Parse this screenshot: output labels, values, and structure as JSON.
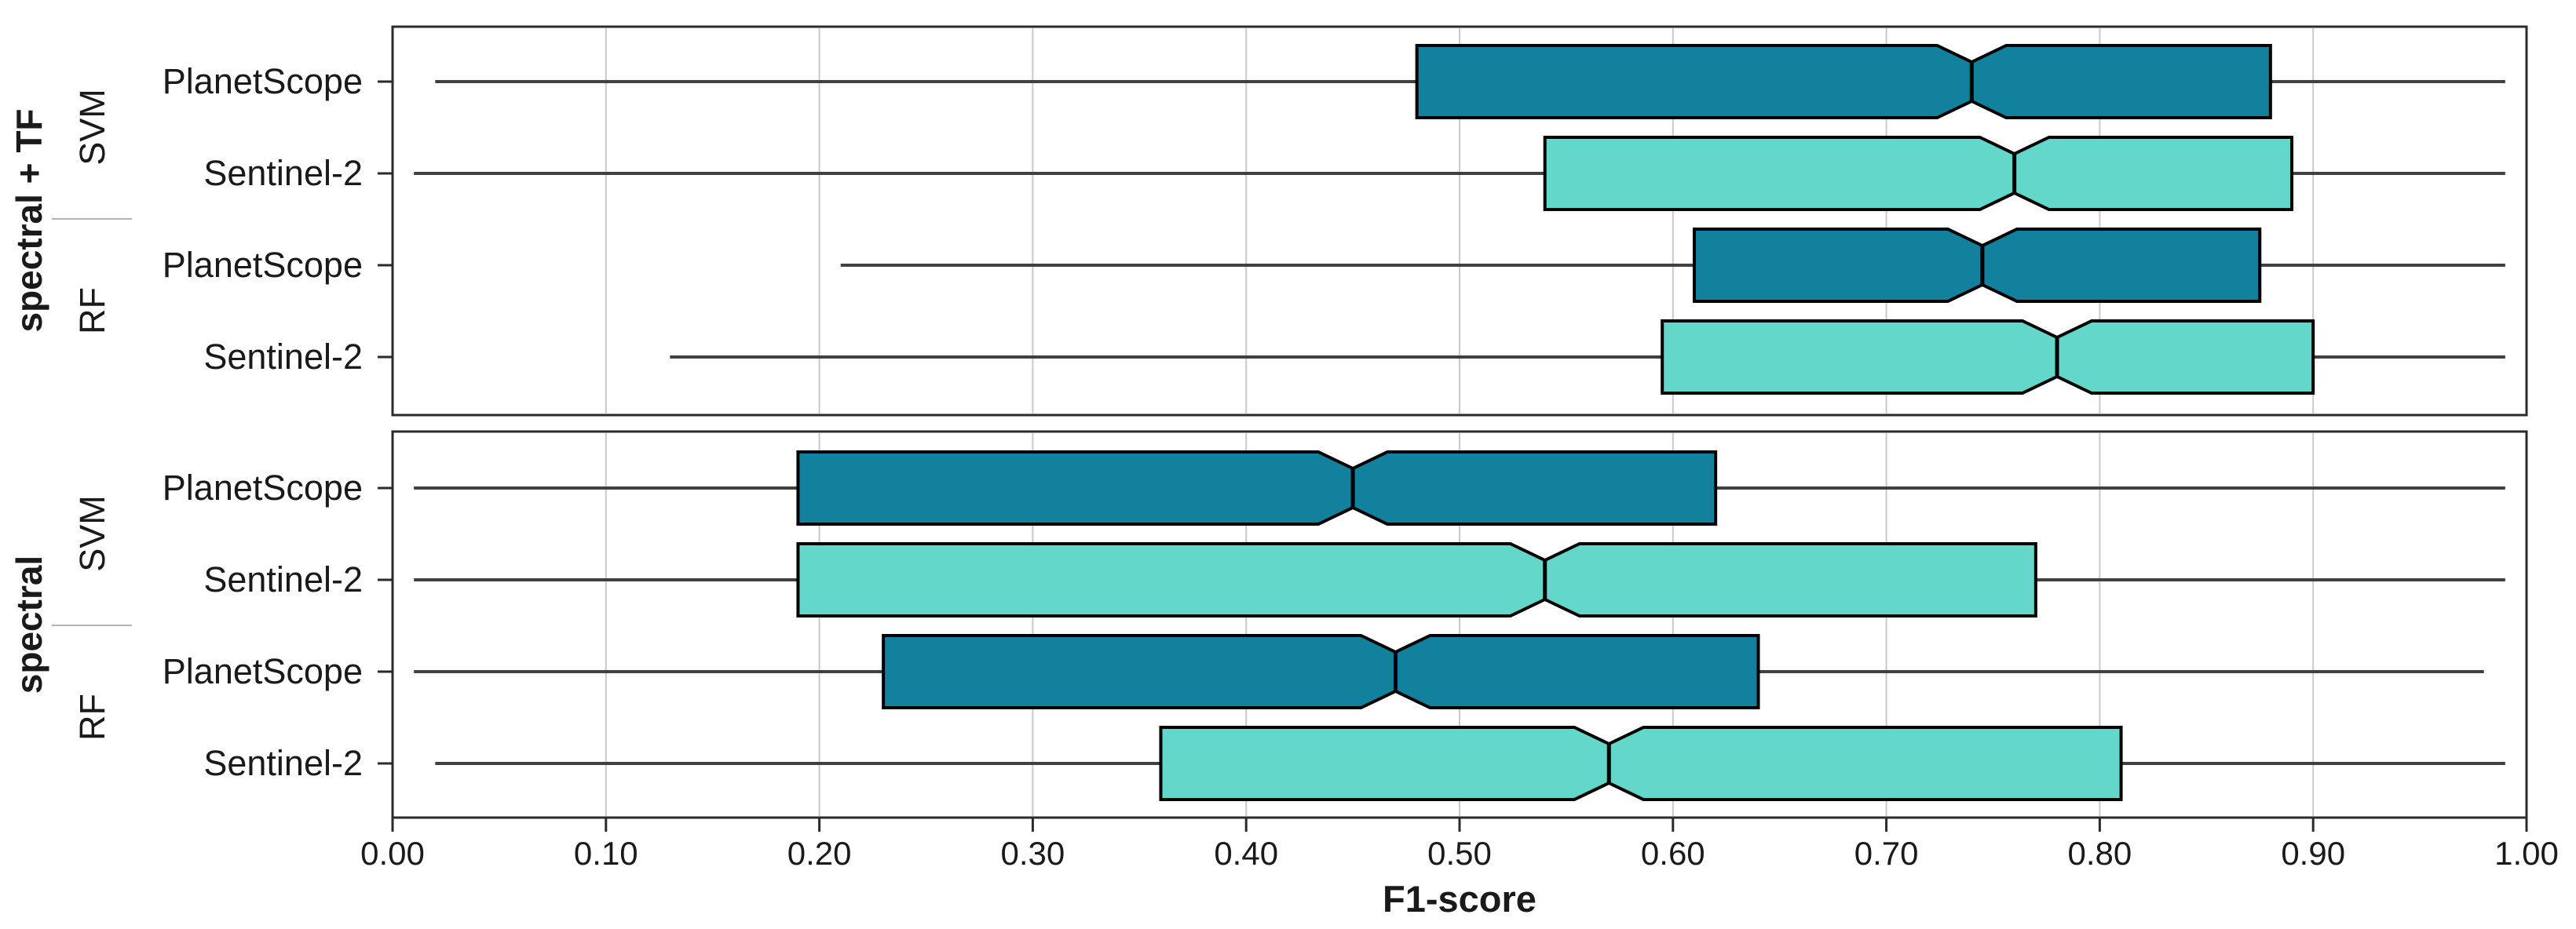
{
  "chart_data": {
    "type": "boxplot",
    "orientation": "horizontal",
    "notched": true,
    "title": "",
    "xlabel": "F1-score",
    "ylabel": "",
    "xlim": [
      0.0,
      1.0
    ],
    "x_tick_step": 0.1,
    "x_tick_labels": [
      "0.00",
      "0.10",
      "0.20",
      "0.30",
      "0.40",
      "0.50",
      "0.60",
      "0.70",
      "0.80",
      "0.90",
      "1.00"
    ],
    "grid": "vertical light-gray gridlines at every 0.10 inside each panel",
    "legend": "none (color encodes sensor)",
    "colors": {
      "planetscope_fill": "#12819E",
      "sentinel2_fill": "#63D7CA",
      "box_border": "#000000",
      "whisker": "#404040",
      "panel_border": "#2b2b2b",
      "gridline": "#c9c9c9",
      "text": "#1a1a1a"
    },
    "panels": [
      {
        "group_label": "spectral + TF",
        "classifier_groups": [
          {
            "label": "SVM"
          },
          {
            "label": "RF"
          }
        ],
        "rows": [
          {
            "classifier": "SVM",
            "label": "PlanetScope",
            "color": "#12819E",
            "whisker_low": 0.02,
            "q1": 0.48,
            "median": 0.74,
            "q3": 0.88,
            "whisker_high": 0.99
          },
          {
            "classifier": "SVM",
            "label": "Sentinel-2",
            "color": "#63D7CA",
            "whisker_low": 0.01,
            "q1": 0.54,
            "median": 0.76,
            "q3": 0.89,
            "whisker_high": 0.99
          },
          {
            "classifier": "RF",
            "label": "PlanetScope",
            "color": "#12819E",
            "whisker_low": 0.21,
            "q1": 0.61,
            "median": 0.745,
            "q3": 0.875,
            "whisker_high": 0.99
          },
          {
            "classifier": "RF",
            "label": "Sentinel-2",
            "color": "#63D7CA",
            "whisker_low": 0.13,
            "q1": 0.595,
            "median": 0.78,
            "q3": 0.9,
            "whisker_high": 0.99
          }
        ]
      },
      {
        "group_label": "spectral",
        "classifier_groups": [
          {
            "label": "SVM"
          },
          {
            "label": "RF"
          }
        ],
        "rows": [
          {
            "classifier": "SVM",
            "label": "PlanetScope",
            "color": "#12819E",
            "whisker_low": 0.01,
            "q1": 0.19,
            "median": 0.45,
            "q3": 0.62,
            "whisker_high": 0.99
          },
          {
            "classifier": "SVM",
            "label": "Sentinel-2",
            "color": "#63D7CA",
            "whisker_low": 0.01,
            "q1": 0.19,
            "median": 0.54,
            "q3": 0.77,
            "whisker_high": 0.99
          },
          {
            "classifier": "RF",
            "label": "PlanetScope",
            "color": "#12819E",
            "whisker_low": 0.01,
            "q1": 0.23,
            "median": 0.47,
            "q3": 0.64,
            "whisker_high": 0.98
          },
          {
            "classifier": "RF",
            "label": "Sentinel-2",
            "color": "#63D7CA",
            "whisker_low": 0.02,
            "q1": 0.36,
            "median": 0.57,
            "q3": 0.81,
            "whisker_high": 0.99
          }
        ]
      }
    ]
  }
}
